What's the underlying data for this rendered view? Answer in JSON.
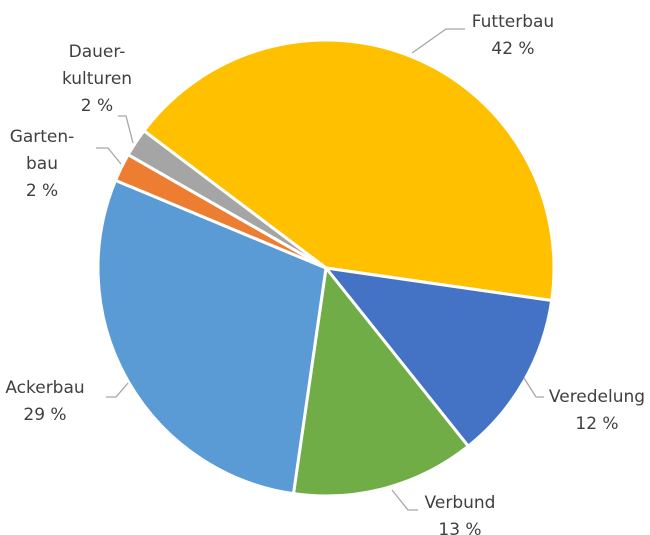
{
  "chart_data": {
    "type": "pie",
    "categories": [
      "Futterbau",
      "Veredelung",
      "Verbund",
      "Ackerbau",
      "Garten-\nbau",
      "Dauer-\nkulturen"
    ],
    "values": [
      42,
      12,
      13,
      29,
      2,
      2
    ],
    "value_labels": [
      "42 %",
      "12 %",
      "13 %",
      "29 %",
      "2 %",
      "2 %"
    ],
    "colors": [
      "#FFC000",
      "#4472C4",
      "#70AD47",
      "#5B9BD5",
      "#ED7D31",
      "#A5A5A5"
    ]
  }
}
